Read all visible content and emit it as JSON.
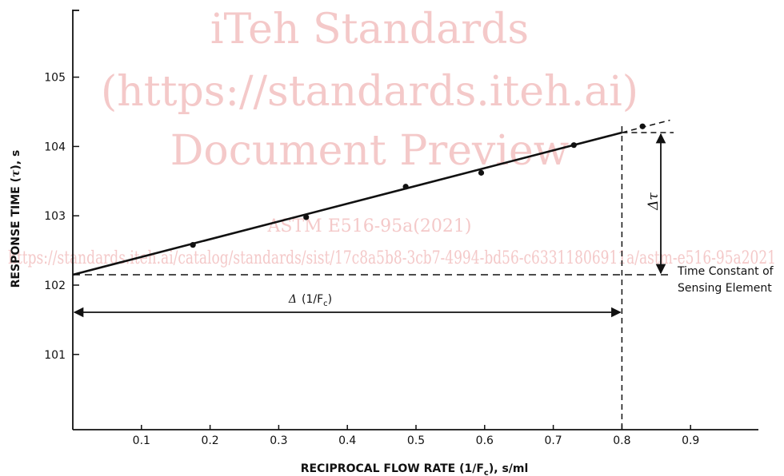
{
  "watermark": {
    "line1": "iTeh Standards",
    "line2": "(https://standards.iteh.ai)",
    "line3": "Document Preview",
    "line4": "ASTM E516-95a(2021)",
    "line5": "https://standards.iteh.ai/catalog/standards/sist/17c8a5b8-3cb7-4994-bd56-c63311806911a/astm-e516-95a2021"
  },
  "chart_data": {
    "type": "scatter",
    "xlabel_prefix": "RECIPROCAL FLOW RATE (1/F",
    "xlabel_sub": "c",
    "xlabel_suffix": "), s/ml",
    "ylabel_prefix": "RESPONSE TIME (",
    "ylabel_symbol": "τ",
    "ylabel_suffix": "), s",
    "xlim": [
      0,
      1.0
    ],
    "ylim": [
      100.0,
      106.0
    ],
    "x_ticks": [
      0.1,
      0.2,
      0.3,
      0.4,
      0.5,
      0.6,
      0.7,
      0.8,
      0.9
    ],
    "x_tick_labels": [
      "0.1",
      "0.2",
      "0.3",
      "0.4",
      "0.5",
      "0.6",
      "0.7",
      "0.8",
      "0.9"
    ],
    "y_ticks": [
      101,
      102,
      103,
      104,
      105
    ],
    "y_tick_labels": [
      "101",
      "102",
      "103",
      "104",
      "105"
    ],
    "points": [
      {
        "x": 0.175,
        "y": 102.58
      },
      {
        "x": 0.34,
        "y": 102.98
      },
      {
        "x": 0.485,
        "y": 103.42
      },
      {
        "x": 0.595,
        "y": 103.62
      },
      {
        "x": 0.73,
        "y": 104.02
      },
      {
        "x": 0.83,
        "y": 104.29
      }
    ],
    "fit_line": {
      "x0": 0.0,
      "y0": 102.15,
      "x1": 0.8,
      "y1": 104.2,
      "extension_x": 0.87
    },
    "reference": {
      "x": 0.8,
      "y_low": 102.15,
      "y_high": 104.2
    },
    "annotations": {
      "delta_x_prefix": "Δ",
      "delta_x_text": "(1/F",
      "delta_x_sub": "c",
      "delta_x_close": ")",
      "delta_tau": "Δτ",
      "time_constant_line1": "Time Constant of",
      "time_constant_line2": "Sensing Element"
    },
    "grid": false
  }
}
